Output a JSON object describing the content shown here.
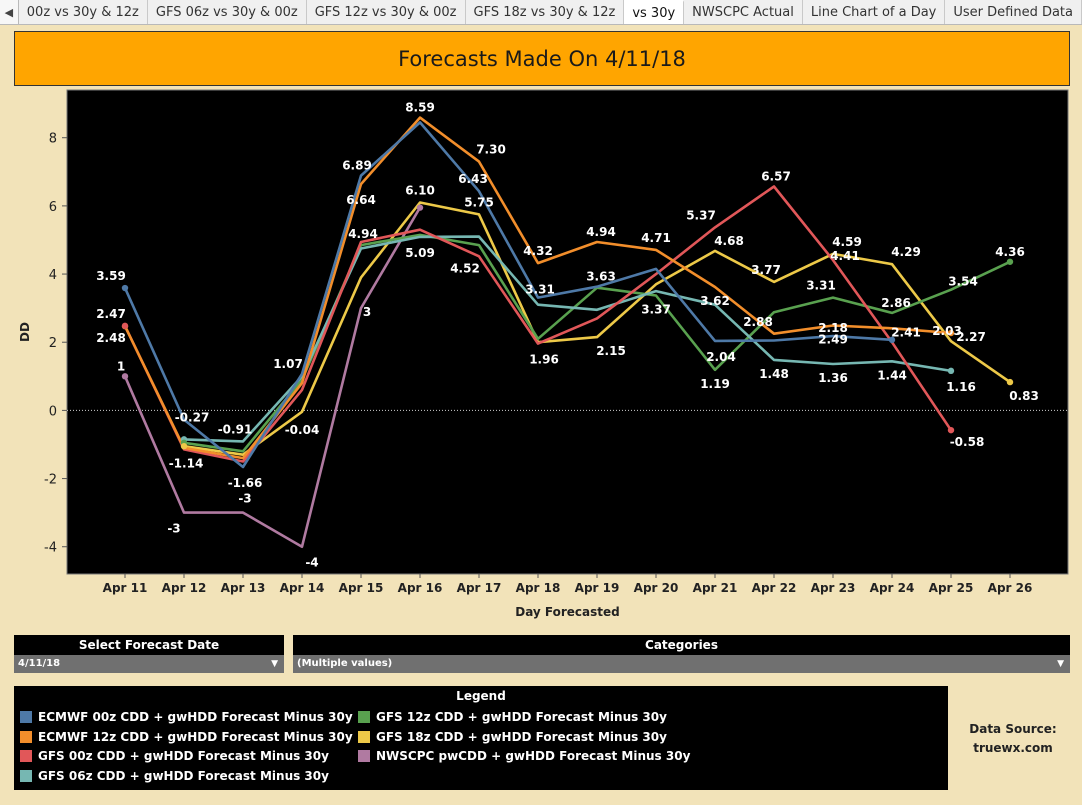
{
  "tabs": [
    {
      "label": "00z vs 30y & 12z"
    },
    {
      "label": "GFS 06z vs 30y & 00z"
    },
    {
      "label": "GFS 12z vs 30y & 00z"
    },
    {
      "label": "GFS 18z vs 30y & 12z"
    },
    {
      "label": "vs 30y",
      "active": true
    },
    {
      "label": "NWSCPC Actual"
    },
    {
      "label": "Line Chart of a Day"
    },
    {
      "label": "User Defined Data"
    }
  ],
  "title": "Forecasts Made On 4/11/18",
  "chart_data": {
    "type": "line",
    "title": "Forecasts Made On 4/11/18",
    "xlabel": "Day Forecasted",
    "ylabel": "DD",
    "categories": [
      "Apr 11",
      "Apr 12",
      "Apr 13",
      "Apr 14",
      "Apr 15",
      "Apr 16",
      "Apr 17",
      "Apr 18",
      "Apr 19",
      "Apr 20",
      "Apr 21",
      "Apr 22",
      "Apr 23",
      "Apr 24",
      "Apr 25",
      "Apr 26"
    ],
    "ylim": [
      -4.8,
      9.4
    ],
    "yticks": [
      -4,
      -2,
      0,
      2,
      4,
      6,
      8
    ],
    "grid": false,
    "zero_line": true,
    "legend_position": "bottom",
    "series": [
      {
        "name": "ECMWF 00z CDD + gwHDD Forecast Minus 30y",
        "color": "#4e79a7",
        "values": [
          3.59,
          -0.27,
          -1.66,
          1.07,
          6.89,
          8.45,
          6.43,
          3.31,
          3.63,
          4.15,
          2.04,
          2.05,
          2.18,
          2.07,
          null,
          null
        ],
        "labels": [
          "3.59",
          "-0.27",
          "-1.66",
          "1.07",
          "6.89",
          null,
          "6.43",
          "3.31",
          "3.63",
          null,
          "2.04",
          null,
          "2.18",
          null,
          null,
          null
        ]
      },
      {
        "name": "ECMWF 12z CDD + gwHDD Forecast Minus 30y",
        "color": "#f28e2b",
        "values": [
          2.47,
          -1.1,
          -1.4,
          0.8,
          6.64,
          8.59,
          7.3,
          4.32,
          4.94,
          4.71,
          3.62,
          2.25,
          2.49,
          2.41,
          2.27,
          null
        ],
        "labels": [
          "2.47",
          null,
          null,
          null,
          "6.64",
          "8.59",
          "7.30",
          "4.32",
          "4.94",
          "4.71",
          "3.62",
          null,
          "2.49",
          "2.41",
          "2.27",
          null
        ]
      },
      {
        "name": "GFS 00z CDD + gwHDD Forecast Minus 30y",
        "color": "#e15759",
        "values": [
          2.48,
          -1.14,
          -1.5,
          0.6,
          4.94,
          5.3,
          4.52,
          1.96,
          2.7,
          4.0,
          5.37,
          6.57,
          4.41,
          2.0,
          -0.58,
          null
        ],
        "labels": [
          "2.48",
          "-1.14",
          null,
          null,
          "4.94",
          null,
          "4.52",
          "1.96",
          null,
          null,
          "5.37",
          "6.57",
          "4.41",
          null,
          "-0.58",
          null
        ]
      },
      {
        "name": "GFS 06z CDD + gwHDD Forecast Minus 30y",
        "color": "#76b7b2",
        "values": [
          null,
          -0.85,
          -0.91,
          1.0,
          4.75,
          5.09,
          5.1,
          3.1,
          2.95,
          3.5,
          3.1,
          1.48,
          1.36,
          1.44,
          1.16,
          null
        ],
        "labels": [
          null,
          null,
          "-0.91",
          null,
          null,
          "5.09",
          null,
          null,
          null,
          null,
          null,
          "1.48",
          "1.36",
          "1.44",
          "1.16",
          null
        ]
      },
      {
        "name": "GFS 12z CDD + gwHDD Forecast Minus 30y",
        "color": "#59a14f",
        "values": [
          null,
          -0.95,
          -1.2,
          0.9,
          4.85,
          5.15,
          4.85,
          2.1,
          3.6,
          3.37,
          1.19,
          2.88,
          3.31,
          2.86,
          3.54,
          4.36
        ],
        "labels": [
          null,
          null,
          null,
          null,
          null,
          null,
          null,
          null,
          null,
          "3.37",
          "1.19",
          "2.88",
          "3.31",
          "2.86",
          "3.54",
          "4.36"
        ]
      },
      {
        "name": "GFS 18z CDD + gwHDD Forecast Minus 30y",
        "color": "#edc948",
        "values": [
          null,
          -1.05,
          -1.3,
          -0.04,
          3.9,
          6.1,
          5.75,
          2.0,
          2.15,
          3.7,
          4.68,
          3.77,
          4.59,
          4.29,
          2.03,
          0.83
        ],
        "labels": [
          null,
          null,
          null,
          "-0.04",
          null,
          "6.10",
          "5.75",
          null,
          "2.15",
          null,
          "4.68",
          "3.77",
          "4.59",
          "4.29",
          "2.03",
          "0.83"
        ]
      },
      {
        "name": "NWSCPC pwCDD + gwHDD Forecast Minus 30y",
        "color": "#b07aa1",
        "values": [
          1,
          -3,
          -3,
          -4,
          3,
          5.95,
          null,
          null,
          null,
          null,
          null,
          null,
          null,
          null,
          null,
          null
        ],
        "labels": [
          "1",
          "-3",
          "-3",
          "-4",
          "3",
          null,
          null,
          null,
          null,
          null,
          null,
          null,
          null,
          null,
          null,
          null
        ]
      }
    ]
  },
  "filters": {
    "forecast_date": {
      "label": "Select Forecast Date",
      "value": "4/11/18"
    },
    "categories": {
      "label": "Categories",
      "value": "(Multiple values)"
    }
  },
  "legend": {
    "title": "Legend",
    "items": [
      {
        "label": "ECMWF 00z CDD + gwHDD Forecast Minus 30y",
        "color": "#4e79a7"
      },
      {
        "label": "ECMWF 12z CDD + gwHDD Forecast Minus 30y",
        "color": "#f28e2b"
      },
      {
        "label": "GFS 00z CDD + gwHDD Forecast Minus 30y",
        "color": "#e15759"
      },
      {
        "label": "GFS 06z CDD + gwHDD Forecast Minus 30y",
        "color": "#76b7b2"
      },
      {
        "label": "GFS 12z CDD + gwHDD Forecast Minus 30y",
        "color": "#59a14f"
      },
      {
        "label": "GFS 18z CDD + gwHDD Forecast Minus 30y",
        "color": "#edc948"
      },
      {
        "label": "NWSCPC pwCDD + gwHDD Forecast Minus 30y",
        "color": "#b07aa1"
      }
    ]
  },
  "source": {
    "line1": "Data Source:",
    "line2": "truewx.com"
  },
  "nav": {
    "left_arrow": "◀"
  }
}
